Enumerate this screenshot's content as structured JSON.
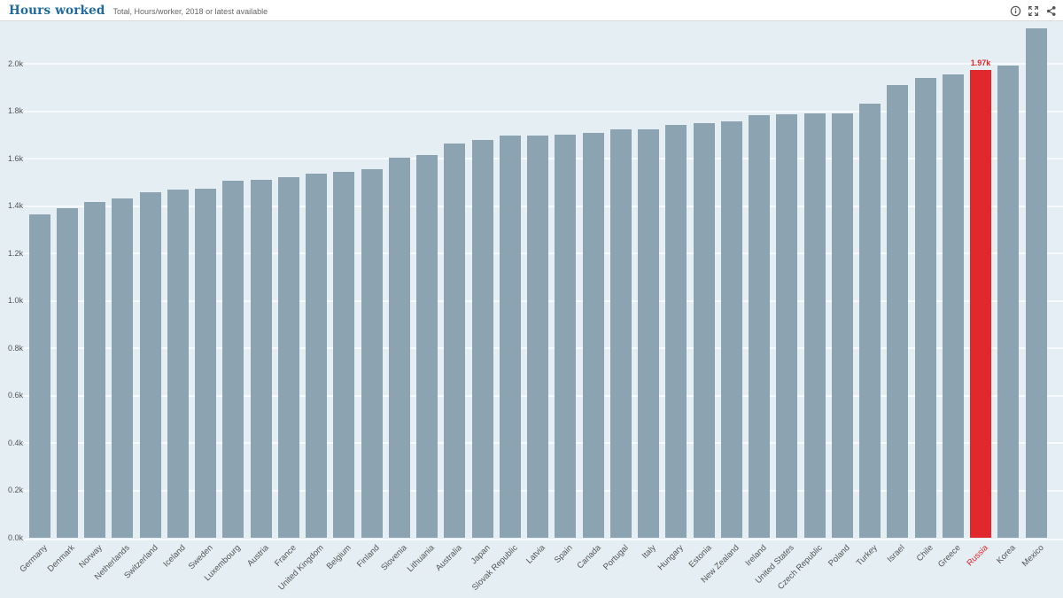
{
  "header": {
    "title": "Hours worked",
    "subtitle": "Total, Hours/worker, 2018 or latest available"
  },
  "toolbar": {
    "icons": [
      "info-icon",
      "fullscreen-icon",
      "share-icon"
    ]
  },
  "colors": {
    "bar": "#8ca3b2",
    "highlight": "#e0282d",
    "chart_background": "#e5eef3",
    "gridline": "#f7fafc",
    "title": "#1f6a9b",
    "axis_text": "#555555"
  },
  "chart_data": {
    "type": "bar",
    "title": "Hours worked",
    "subtitle": "Total, Hours/worker, 2018 or latest available",
    "categories": [
      "Germany",
      "Denmark",
      "Norway",
      "Netherlands",
      "Switzerland",
      "Iceland",
      "Sweden",
      "Luxembourg",
      "Austria",
      "France",
      "United Kingdom",
      "Belgium",
      "Finland",
      "Slovenia",
      "Lithuania",
      "Australia",
      "Japan",
      "Slovak Republic",
      "Latvia",
      "Spain",
      "Canada",
      "Portugal",
      "Italy",
      "Hungary",
      "Estonia",
      "New Zealand",
      "Ireland",
      "United States",
      "Czech Republic",
      "Poland",
      "Turkey",
      "Israel",
      "Chile",
      "Greece",
      "Russia",
      "Korea",
      "Mexico"
    ],
    "values": [
      1363,
      1392,
      1416,
      1433,
      1458,
      1469,
      1474,
      1506,
      1511,
      1520,
      1538,
      1545,
      1555,
      1603,
      1616,
      1665,
      1680,
      1698,
      1699,
      1701,
      1708,
      1722,
      1723,
      1741,
      1748,
      1756,
      1782,
      1786,
      1792,
      1792,
      1832,
      1910,
      1941,
      1956,
      1972,
      1993,
      2148
    ],
    "highlight_category": "Russia",
    "highlight_value_label": "1.97k",
    "xlabel": "",
    "ylabel": "",
    "ylim": [
      0,
      2200
    ],
    "ytick_values": [
      0,
      200,
      400,
      600,
      800,
      1000,
      1200,
      1400,
      1600,
      1800,
      2000
    ],
    "ytick_labels": [
      "0.0k",
      "0.2k",
      "0.4k",
      "0.6k",
      "0.8k",
      "1.0k",
      "1.2k",
      "1.4k",
      "1.6k",
      "1.8k",
      "2.0k"
    ],
    "grid": true,
    "legend": false
  }
}
